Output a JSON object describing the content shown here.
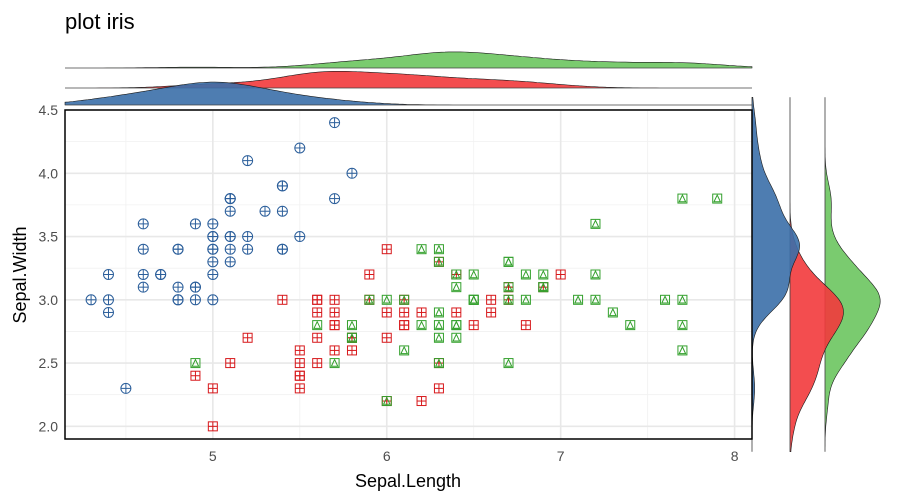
{
  "chart_data": {
    "type": "scatter",
    "title": "plot iris",
    "xlabel": "Sepal.Length",
    "ylabel": "Sepal.Width",
    "xlim": [
      4.15,
      8.1
    ],
    "ylim": [
      1.9,
      4.5
    ],
    "x_ticks": [
      5,
      6,
      7,
      8
    ],
    "y_ticks": [
      2.0,
      2.5,
      3.0,
      3.5,
      4.0,
      4.5
    ],
    "x_tick_labels": [
      "5",
      "6",
      "7",
      "8"
    ],
    "y_tick_labels": [
      "2.0",
      "2.5",
      "3.0",
      "3.5",
      "4.0",
      "4.5"
    ],
    "grid": true,
    "legend": "none",
    "marginal_density": {
      "top": true,
      "right": true
    },
    "series": [
      {
        "color": "#2c5f9b",
        "fill": "#3b6fa8",
        "marker": "circle-plus",
        "points": [
          [
            5.1,
            3.5
          ],
          [
            4.9,
            3.0
          ],
          [
            4.7,
            3.2
          ],
          [
            4.6,
            3.1
          ],
          [
            5.0,
            3.6
          ],
          [
            5.4,
            3.9
          ],
          [
            4.6,
            3.4
          ],
          [
            5.0,
            3.4
          ],
          [
            4.4,
            2.9
          ],
          [
            4.9,
            3.1
          ],
          [
            5.4,
            3.7
          ],
          [
            4.8,
            3.4
          ],
          [
            4.8,
            3.0
          ],
          [
            4.3,
            3.0
          ],
          [
            5.8,
            4.0
          ],
          [
            5.7,
            4.4
          ],
          [
            5.4,
            3.9
          ],
          [
            5.1,
            3.5
          ],
          [
            5.7,
            3.8
          ],
          [
            5.1,
            3.8
          ],
          [
            5.4,
            3.4
          ],
          [
            5.1,
            3.7
          ],
          [
            4.6,
            3.6
          ],
          [
            5.1,
            3.3
          ],
          [
            4.8,
            3.4
          ],
          [
            5.0,
            3.0
          ],
          [
            5.0,
            3.4
          ],
          [
            5.2,
            3.5
          ],
          [
            5.2,
            3.4
          ],
          [
            4.7,
            3.2
          ],
          [
            4.8,
            3.1
          ],
          [
            5.4,
            3.4
          ],
          [
            5.2,
            4.1
          ],
          [
            5.5,
            4.2
          ],
          [
            4.9,
            3.1
          ],
          [
            5.0,
            3.2
          ],
          [
            5.5,
            3.5
          ],
          [
            4.9,
            3.6
          ],
          [
            4.4,
            3.0
          ],
          [
            5.1,
            3.4
          ],
          [
            5.0,
            3.5
          ],
          [
            4.5,
            2.3
          ],
          [
            4.4,
            3.2
          ],
          [
            5.0,
            3.5
          ],
          [
            5.1,
            3.8
          ],
          [
            4.8,
            3.0
          ],
          [
            5.1,
            3.8
          ],
          [
            4.6,
            3.2
          ],
          [
            5.3,
            3.7
          ],
          [
            5.0,
            3.3
          ]
        ]
      },
      {
        "color": "#d7191c",
        "fill": "#f23a3c",
        "marker": "square-plus",
        "points": [
          [
            7.0,
            3.2
          ],
          [
            6.4,
            3.2
          ],
          [
            6.9,
            3.1
          ],
          [
            5.5,
            2.3
          ],
          [
            6.5,
            2.8
          ],
          [
            5.7,
            2.8
          ],
          [
            6.3,
            3.3
          ],
          [
            4.9,
            2.4
          ],
          [
            6.6,
            2.9
          ],
          [
            5.2,
            2.7
          ],
          [
            5.0,
            2.0
          ],
          [
            5.9,
            3.0
          ],
          [
            6.0,
            2.2
          ],
          [
            6.1,
            2.9
          ],
          [
            5.6,
            2.9
          ],
          [
            6.7,
            3.1
          ],
          [
            5.6,
            3.0
          ],
          [
            5.8,
            2.7
          ],
          [
            6.2,
            2.2
          ],
          [
            5.6,
            2.5
          ],
          [
            5.9,
            3.2
          ],
          [
            6.1,
            2.8
          ],
          [
            6.3,
            2.5
          ],
          [
            6.1,
            2.8
          ],
          [
            6.4,
            2.9
          ],
          [
            6.6,
            3.0
          ],
          [
            6.8,
            2.8
          ],
          [
            6.7,
            3.0
          ],
          [
            6.0,
            2.9
          ],
          [
            5.7,
            2.6
          ],
          [
            5.5,
            2.4
          ],
          [
            5.5,
            2.4
          ],
          [
            5.8,
            2.7
          ],
          [
            6.0,
            2.7
          ],
          [
            5.4,
            3.0
          ],
          [
            6.0,
            3.4
          ],
          [
            6.7,
            3.1
          ],
          [
            6.3,
            2.3
          ],
          [
            5.6,
            3.0
          ],
          [
            5.5,
            2.5
          ],
          [
            5.5,
            2.6
          ],
          [
            6.1,
            3.0
          ],
          [
            5.8,
            2.6
          ],
          [
            5.0,
            2.3
          ],
          [
            5.6,
            2.7
          ],
          [
            5.7,
            3.0
          ],
          [
            5.7,
            2.9
          ],
          [
            6.2,
            2.9
          ],
          [
            5.1,
            2.5
          ],
          [
            5.7,
            2.8
          ]
        ]
      },
      {
        "color": "#33a02c",
        "fill": "#6cc55f",
        "marker": "square-triangle",
        "points": [
          [
            6.3,
            3.3
          ],
          [
            5.8,
            2.7
          ],
          [
            7.1,
            3.0
          ],
          [
            6.3,
            2.9
          ],
          [
            6.5,
            3.0
          ],
          [
            7.6,
            3.0
          ],
          [
            4.9,
            2.5
          ],
          [
            7.3,
            2.9
          ],
          [
            6.7,
            2.5
          ],
          [
            7.2,
            3.6
          ],
          [
            6.5,
            3.2
          ],
          [
            6.4,
            2.7
          ],
          [
            6.8,
            3.0
          ],
          [
            5.7,
            2.5
          ],
          [
            5.8,
            2.8
          ],
          [
            6.4,
            3.2
          ],
          [
            6.5,
            3.0
          ],
          [
            7.7,
            3.8
          ],
          [
            7.7,
            2.6
          ],
          [
            6.0,
            2.2
          ],
          [
            6.9,
            3.2
          ],
          [
            5.6,
            2.8
          ],
          [
            7.7,
            2.8
          ],
          [
            6.3,
            2.7
          ],
          [
            6.7,
            3.3
          ],
          [
            7.2,
            3.2
          ],
          [
            6.2,
            2.8
          ],
          [
            6.1,
            3.0
          ],
          [
            6.4,
            2.8
          ],
          [
            7.2,
            3.0
          ],
          [
            7.4,
            2.8
          ],
          [
            7.9,
            3.8
          ],
          [
            6.4,
            2.8
          ],
          [
            6.3,
            2.8
          ],
          [
            6.1,
            2.6
          ],
          [
            7.7,
            3.0
          ],
          [
            6.3,
            3.4
          ],
          [
            6.4,
            3.1
          ],
          [
            6.0,
            3.0
          ],
          [
            6.9,
            3.1
          ],
          [
            6.7,
            3.1
          ],
          [
            6.9,
            3.1
          ],
          [
            5.8,
            2.7
          ],
          [
            6.8,
            3.2
          ],
          [
            6.7,
            3.3
          ],
          [
            6.7,
            3.0
          ],
          [
            6.3,
            2.5
          ],
          [
            6.5,
            3.0
          ],
          [
            6.2,
            3.4
          ],
          [
            5.9,
            3.0
          ]
        ]
      }
    ]
  }
}
